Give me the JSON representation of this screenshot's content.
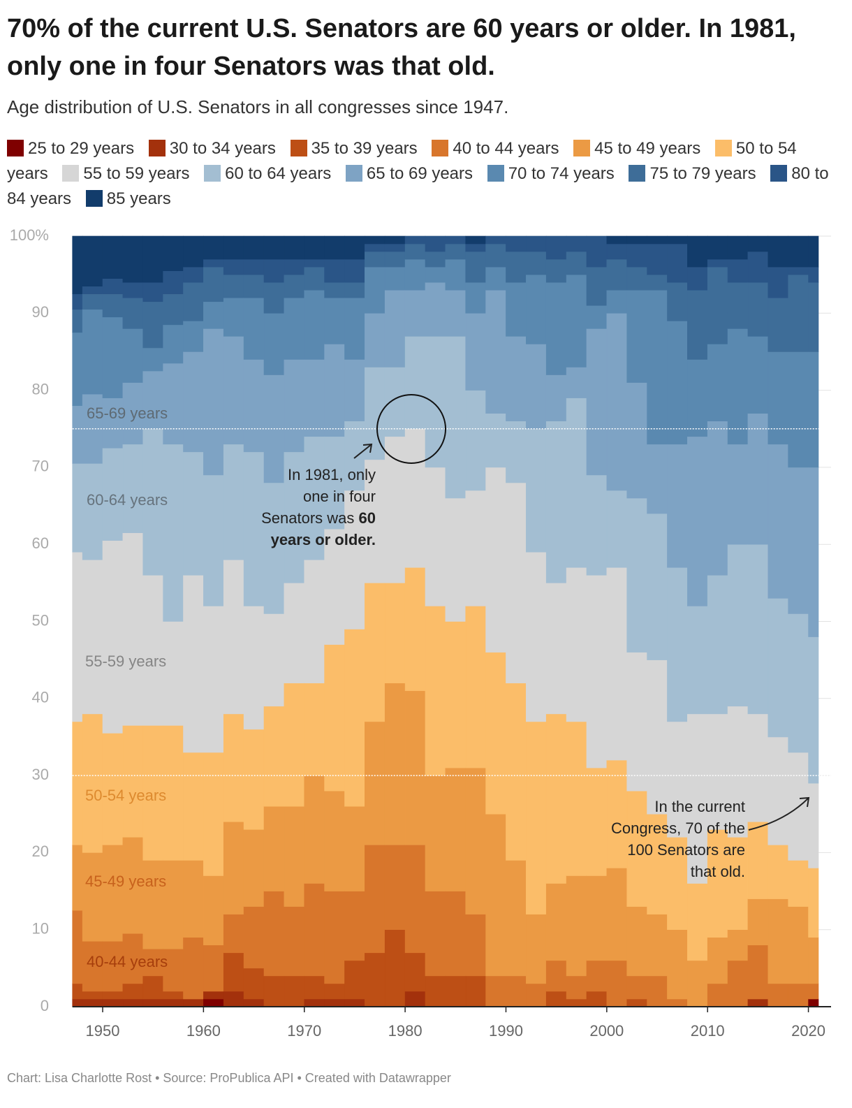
{
  "chart_data": {
    "type": "stacked-step-area",
    "title": "70% of the current U.S. Senators are 60 years or older. In 1981, only one in four Senators was that old.",
    "subtitle": "Age distribution of U.S. Senators in all congresses since 1947.",
    "source": "Chart: Lisa Charlotte Rost • Source: ProPublica API • Created with Datawrapper",
    "x": [
      1947,
      1949,
      1951,
      1953,
      1955,
      1957,
      1959,
      1961,
      1963,
      1965,
      1967,
      1969,
      1971,
      1973,
      1975,
      1977,
      1979,
      1981,
      1983,
      1985,
      1987,
      1989,
      1991,
      1993,
      1995,
      1997,
      1999,
      2001,
      2003,
      2005,
      2007,
      2009,
      2011,
      2013,
      2015,
      2017,
      2019,
      2021
    ],
    "xlim": [
      1947,
      2021
    ],
    "xticks": [
      1950,
      1960,
      1970,
      1980,
      1990,
      2000,
      2010,
      2020
    ],
    "ylim": [
      0,
      100
    ],
    "yticks": [
      0,
      10,
      20,
      30,
      40,
      50,
      60,
      70,
      80,
      90,
      {
        "value": 100,
        "label": "100%"
      }
    ],
    "grid": true,
    "reference_lines": [
      75,
      30
    ],
    "series": [
      {
        "name": "25 to 29 years",
        "color": "#7f0000",
        "values": [
          0,
          0,
          0,
          0,
          0,
          0,
          0,
          1,
          0,
          0,
          0,
          0,
          0,
          0,
          0,
          0,
          0,
          0,
          0,
          0,
          0,
          0,
          0,
          0,
          0,
          0,
          0,
          0,
          0,
          0,
          0,
          0,
          0,
          0,
          0,
          0,
          0,
          1
        ]
      },
      {
        "name": "30 to 34 years",
        "color": "#a3310c",
        "values": [
          1,
          1,
          1,
          1,
          1,
          1,
          1,
          1,
          2,
          1,
          0,
          0,
          1,
          1,
          1,
          0,
          0,
          2,
          0,
          0,
          0,
          0,
          0,
          0,
          0,
          0,
          0,
          0,
          0,
          0,
          0,
          0,
          0,
          0,
          1,
          0,
          0,
          0
        ]
      },
      {
        "name": "35 to 39 years",
        "color": "#bd4f15",
        "values": [
          2,
          1,
          1,
          2,
          3,
          1,
          0,
          0,
          5,
          4,
          4,
          4,
          3,
          2,
          5,
          7,
          10,
          5,
          4,
          4,
          4,
          0,
          0,
          0,
          2,
          1,
          2,
          0,
          1,
          0,
          0,
          0,
          0,
          0,
          0,
          0,
          0,
          0
        ]
      },
      {
        "name": "40 to 44 years",
        "color": "#d8762c",
        "values": [
          9.5,
          6.5,
          6.5,
          6.5,
          3.5,
          5.5,
          8,
          6,
          5,
          8,
          11,
          9,
          12,
          12,
          9,
          14,
          11,
          14,
          11,
          11,
          8,
          4,
          4,
          3,
          4,
          3,
          4,
          6,
          3,
          4,
          1,
          0,
          3,
          6,
          7,
          3,
          3,
          2
        ]
      },
      {
        "name": "45 to 49 years",
        "color": "#eb9a44",
        "values": [
          8.5,
          11.5,
          12.5,
          12.5,
          11.5,
          11.5,
          10,
          9,
          12,
          10,
          11,
          13,
          14,
          13,
          11,
          16,
          21,
          20,
          15,
          16,
          19,
          21,
          15,
          9,
          10,
          13,
          11,
          12,
          9,
          8,
          9,
          6,
          6,
          4,
          6,
          11,
          10,
          6
        ]
      },
      {
        "name": "50 to 54 years",
        "color": "#fbbd69",
        "values": [
          16,
          18,
          14.5,
          14.5,
          17.5,
          17.5,
          14,
          16,
          14,
          13,
          13,
          16,
          12,
          19,
          23,
          18,
          13,
          16,
          22,
          19,
          21,
          21,
          23,
          25,
          22,
          20,
          14,
          14,
          15,
          13,
          12,
          10,
          14,
          12,
          10,
          7,
          6,
          9
        ]
      },
      {
        "name": "55 to 59 years",
        "color": "#d6d6d6",
        "values": [
          22,
          20,
          25,
          25,
          19.5,
          13.5,
          23,
          19,
          20,
          16,
          12,
          13,
          16,
          15,
          18,
          16,
          19,
          18,
          18,
          16,
          15,
          24,
          26,
          22,
          17,
          20,
          25,
          25,
          18,
          20,
          15,
          22,
          15,
          17,
          14,
          14,
          14,
          11
        ]
      },
      {
        "name": "60 to 64 years",
        "color": "#a3bed2",
        "values": [
          11.5,
          12.5,
          12,
          11.5,
          19,
          23,
          16,
          17,
          15,
          20,
          17,
          17,
          16,
          12,
          9,
          12,
          9,
          12,
          17,
          21,
          13,
          7,
          8,
          16,
          21,
          22,
          13,
          10,
          20,
          19,
          20,
          14,
          18,
          21,
          22,
          18,
          18,
          19
        ]
      },
      {
        "name": "65 to 69 years",
        "color": "#7ea3c4",
        "values": [
          7.5,
          9,
          6.5,
          8,
          7.5,
          10.5,
          13,
          19,
          14,
          12,
          14,
          12,
          10,
          12,
          8,
          7,
          10,
          6,
          7,
          6,
          10,
          16,
          11,
          11,
          6,
          4,
          19,
          23,
          15,
          9,
          16,
          22,
          20,
          13,
          17,
          20,
          19,
          22
        ]
      },
      {
        "name": "70 to 74 years",
        "color": "#5a89b0",
        "values": [
          9.5,
          11,
          10.5,
          7,
          3,
          5,
          4,
          3.5,
          5,
          8,
          8,
          8,
          9,
          6,
          8,
          6,
          3,
          4,
          2,
          4,
          4,
          3,
          7,
          9,
          12,
          12,
          3,
          3,
          12,
          20,
          16,
          10,
          10,
          15,
          10,
          12,
          15,
          15
        ]
      },
      {
        "name": "75 to 79 years",
        "color": "#3e6d98",
        "values": [
          3,
          2,
          3,
          4,
          6,
          4,
          5,
          4.5,
          3,
          3,
          4,
          3,
          3,
          2,
          2,
          2,
          2,
          2,
          2,
          2,
          4,
          3,
          4,
          3,
          3,
          3,
          5,
          4,
          3,
          2,
          5,
          9,
          10,
          6,
          7,
          7,
          10,
          9
        ]
      },
      {
        "name": "80 to 84 years",
        "color": "#2a5587",
        "values": [
          2,
          1,
          2,
          2,
          2.5,
          3,
          2,
          1,
          2,
          2,
          3,
          2,
          1,
          3,
          3,
          1,
          1,
          1,
          2,
          1,
          1,
          1,
          2,
          2,
          3,
          2,
          4,
          2,
          3,
          4,
          5,
          3,
          1,
          3,
          4,
          4,
          1,
          2
        ]
      },
      {
        "name": "85 years",
        "color": "#123c6b",
        "values": [
          7.5,
          6.5,
          5.5,
          6,
          6,
          4.5,
          4,
          3,
          3,
          3,
          3,
          3,
          3,
          3,
          3,
          1,
          1,
          0,
          0,
          0,
          1,
          0,
          0,
          0,
          0,
          0,
          0,
          1,
          1,
          1,
          1,
          4,
          3,
          3,
          2,
          4,
          4,
          4
        ]
      }
    ],
    "area_labels": [
      "65-69 years",
      "60-64 years",
      "55-59 years",
      "50-54 years",
      "45-49 years",
      "40-44 years"
    ],
    "annotations": [
      {
        "text": "In 1981, only one in four Senators was",
        "bold": "60 years or older."
      },
      {
        "text": "In the current Congress, 70  of the 100 Senators are that old."
      }
    ]
  }
}
